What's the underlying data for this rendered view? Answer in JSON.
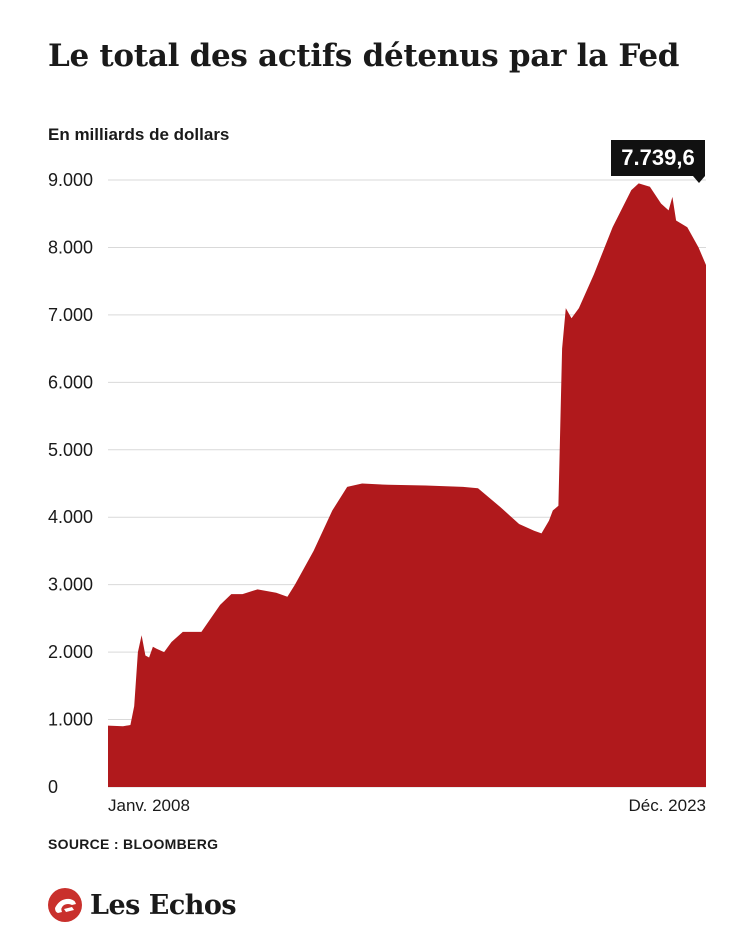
{
  "title": "Le total des actifs détenus par la Fed",
  "unit_label": "En milliards de dollars",
  "source": "SOURCE : BLOOMBERG",
  "brand": {
    "name": "Les Echos",
    "logo_icon": "les-echos-logo-icon"
  },
  "colors": {
    "area": "#b0191c",
    "grid": "#d9d9d9",
    "callout_bg": "#111111"
  },
  "callout": {
    "value": "7.739,6"
  },
  "chart_data": {
    "type": "area",
    "xlabel": "",
    "ylabel": "",
    "x_tick_labels": [
      "Janv. 2008",
      "Déc. 2023"
    ],
    "y_ticks": [
      0,
      1000,
      2000,
      3000,
      4000,
      5000,
      6000,
      7000,
      8000,
      9000
    ],
    "y_tick_labels": [
      "0",
      "1.000",
      "2.000",
      "3.000",
      "4.000",
      "5.000",
      "6.000",
      "7.000",
      "8.000",
      "9.000"
    ],
    "ylim": [
      0,
      9000
    ],
    "xlim": [
      2008.0,
      2024.0
    ],
    "grid": true,
    "series": [
      {
        "x": [
          2008.0,
          2008.4,
          2008.6,
          2008.7,
          2008.8,
          2008.9,
          2009.0,
          2009.1,
          2009.2,
          2009.3,
          2009.5,
          2009.7,
          2010.0,
          2010.5,
          2011.0,
          2011.3,
          2011.6,
          2012.0,
          2012.5,
          2012.8,
          2013.0,
          2013.5,
          2014.0,
          2014.4,
          2014.8,
          2015.5,
          2016.5,
          2017.5,
          2017.9,
          2018.5,
          2019.0,
          2019.4,
          2019.6,
          2019.8,
          2019.9,
          2020.05,
          2020.15,
          2020.25,
          2020.4,
          2020.6,
          2021.0,
          2021.5,
          2022.0,
          2022.2,
          2022.5,
          2022.8,
          2023.0,
          2023.1,
          2023.2,
          2023.5,
          2023.8,
          2024.0
        ],
        "y": [
          910,
          900,
          920,
          1200,
          2000,
          2250,
          1950,
          1920,
          2080,
          2050,
          2000,
          2150,
          2300,
          2300,
          2700,
          2860,
          2860,
          2930,
          2880,
          2820,
          3000,
          3500,
          4100,
          4450,
          4500,
          4480,
          4470,
          4450,
          4430,
          4150,
          3900,
          3800,
          3760,
          3950,
          4100,
          4170,
          6500,
          7100,
          6950,
          7100,
          7600,
          8300,
          8850,
          8950,
          8900,
          8650,
          8550,
          8750,
          8400,
          8300,
          8000,
          7739.6
        ]
      }
    ]
  }
}
